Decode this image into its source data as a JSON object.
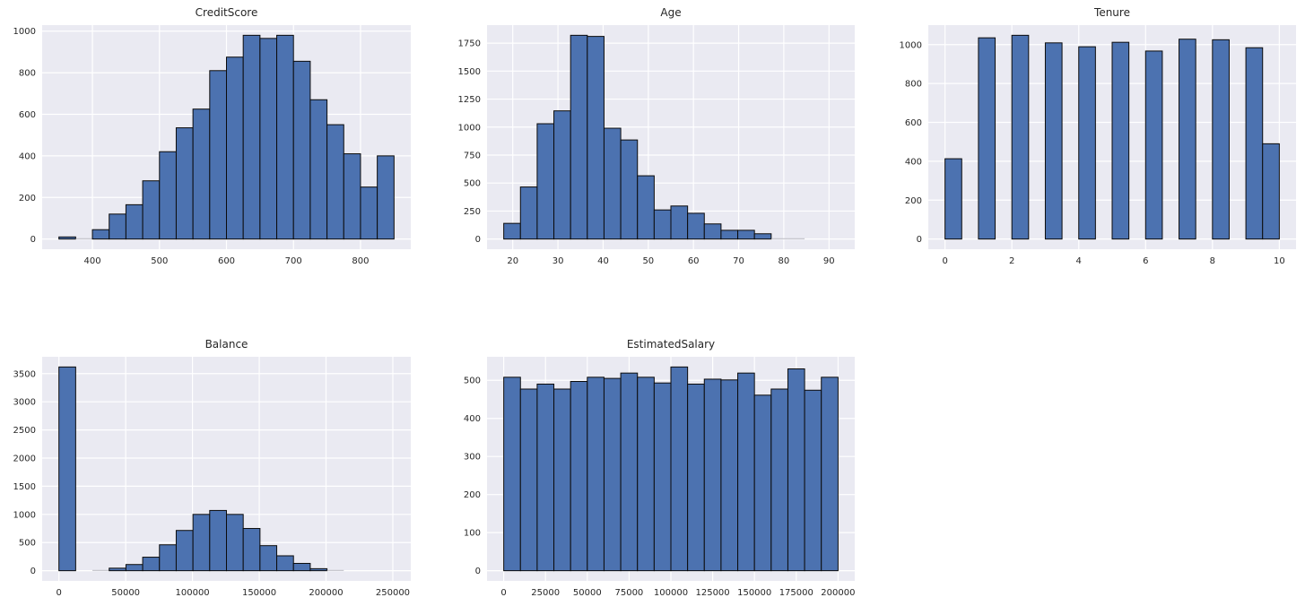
{
  "figure": {
    "background": "#ffffff",
    "plot_background": "#eaeaf2",
    "grid_color": "#ffffff",
    "bar_fill": "#4c72b0",
    "bar_edge": "#0b0b0b",
    "faint_bar_color": "#a9a9b2",
    "text_color": "#262626"
  },
  "chart_data": [
    {
      "type": "bar",
      "kind": "histogram",
      "title": "CreditScore",
      "bin_start": 350,
      "bin_width": 25,
      "values": [
        10,
        3,
        45,
        120,
        165,
        280,
        420,
        535,
        625,
        810,
        875,
        980,
        965,
        980,
        855,
        670,
        550,
        410,
        250,
        400
      ],
      "xlim": [
        325,
        875
      ],
      "ylim": [
        -49,
        1029
      ],
      "xticks": [
        400,
        500,
        600,
        700,
        800
      ],
      "xtick_labels": [
        "400",
        "500",
        "600",
        "700",
        "800"
      ],
      "yticks": [
        0,
        200,
        400,
        600,
        800,
        1000
      ],
      "ytick_labels": [
        "0",
        "200",
        "400",
        "600",
        "800",
        "1000"
      ],
      "grid": true,
      "legend": "none"
    },
    {
      "type": "bar",
      "kind": "histogram",
      "title": "Age",
      "bin_start": 18,
      "bin_width": 3.7,
      "values": [
        140,
        465,
        1030,
        1145,
        1820,
        1810,
        990,
        885,
        565,
        260,
        295,
        230,
        135,
        78,
        78,
        47,
        5,
        4,
        0,
        1
      ],
      "xlim": [
        14.3,
        95.7
      ],
      "ylim": [
        -91,
        1911
      ],
      "xticks": [
        20,
        30,
        40,
        50,
        60,
        70,
        80,
        90
      ],
      "xtick_labels": [
        "20",
        "30",
        "40",
        "50",
        "60",
        "70",
        "80",
        "90"
      ],
      "yticks": [
        0,
        250,
        500,
        750,
        1000,
        1250,
        1500,
        1750
      ],
      "ytick_labels": [
        "0",
        "250",
        "500",
        "750",
        "1000",
        "1250",
        "1500",
        "1750"
      ],
      "grid": true,
      "legend": "none"
    },
    {
      "type": "bar",
      "kind": "histogram",
      "title": "Tenure",
      "bin_start": 0,
      "bin_width": 0.5,
      "values": [
        413,
        0,
        1035,
        0,
        1048,
        0,
        1009,
        0,
        989,
        0,
        1012,
        0,
        967,
        0,
        1028,
        0,
        1025,
        0,
        984,
        490
      ],
      "xlim": [
        -0.5,
        10.5
      ],
      "ylim": [
        -52.4,
        1100.4
      ],
      "xticks": [
        0,
        2,
        4,
        6,
        8,
        10
      ],
      "xtick_labels": [
        "0",
        "2",
        "4",
        "6",
        "8",
        "10"
      ],
      "yticks": [
        0,
        200,
        400,
        600,
        800,
        1000
      ],
      "ytick_labels": [
        "0",
        "200",
        "400",
        "600",
        "800",
        "1000"
      ],
      "grid": true,
      "legend": "none"
    },
    {
      "type": "bar",
      "kind": "histogram",
      "title": "Balance",
      "bin_start": 0,
      "bin_width": 12544.9,
      "values": [
        3618,
        0,
        10,
        45,
        110,
        240,
        460,
        715,
        1000,
        1070,
        1000,
        750,
        445,
        265,
        130,
        36,
        25,
        0,
        0,
        1
      ],
      "xlim": [
        -12544.9,
        263443
      ],
      "ylim": [
        -180.9,
        3798.9
      ],
      "xticks": [
        0,
        50000,
        100000,
        150000,
        200000,
        250000
      ],
      "xtick_labels": [
        "0",
        "50000",
        "100000",
        "150000",
        "200000",
        "250000"
      ],
      "yticks": [
        0,
        500,
        1000,
        1500,
        2000,
        2500,
        3000,
        3500
      ],
      "ytick_labels": [
        "0",
        "500",
        "1000",
        "1500",
        "2000",
        "2500",
        "3000",
        "3500"
      ],
      "grid": true,
      "legend": "none"
    },
    {
      "type": "bar",
      "kind": "histogram",
      "title": "EstimatedSalary",
      "bin_start": 11.6,
      "bin_width": 9999.05,
      "values": [
        508,
        477,
        490,
        477,
        497,
        508,
        505,
        519,
        508,
        493,
        535,
        490,
        503,
        501,
        519,
        461,
        477,
        530,
        474,
        508
      ],
      "xlim": [
        -9987.9,
        209991.1
      ],
      "xticks": [
        0,
        25000,
        50000,
        75000,
        100000,
        125000,
        150000,
        175000,
        200000
      ],
      "xtick_labels": [
        "0",
        "25000",
        "50000",
        "75000",
        "100000",
        "125000",
        "150000",
        "175000",
        "200000"
      ],
      "ylim": [
        -26.75,
        561.75
      ],
      "yticks": [
        0,
        100,
        200,
        300,
        400,
        500
      ],
      "ytick_labels": [
        "0",
        "100",
        "200",
        "300",
        "400",
        "500"
      ],
      "grid": true,
      "legend": "none"
    }
  ]
}
